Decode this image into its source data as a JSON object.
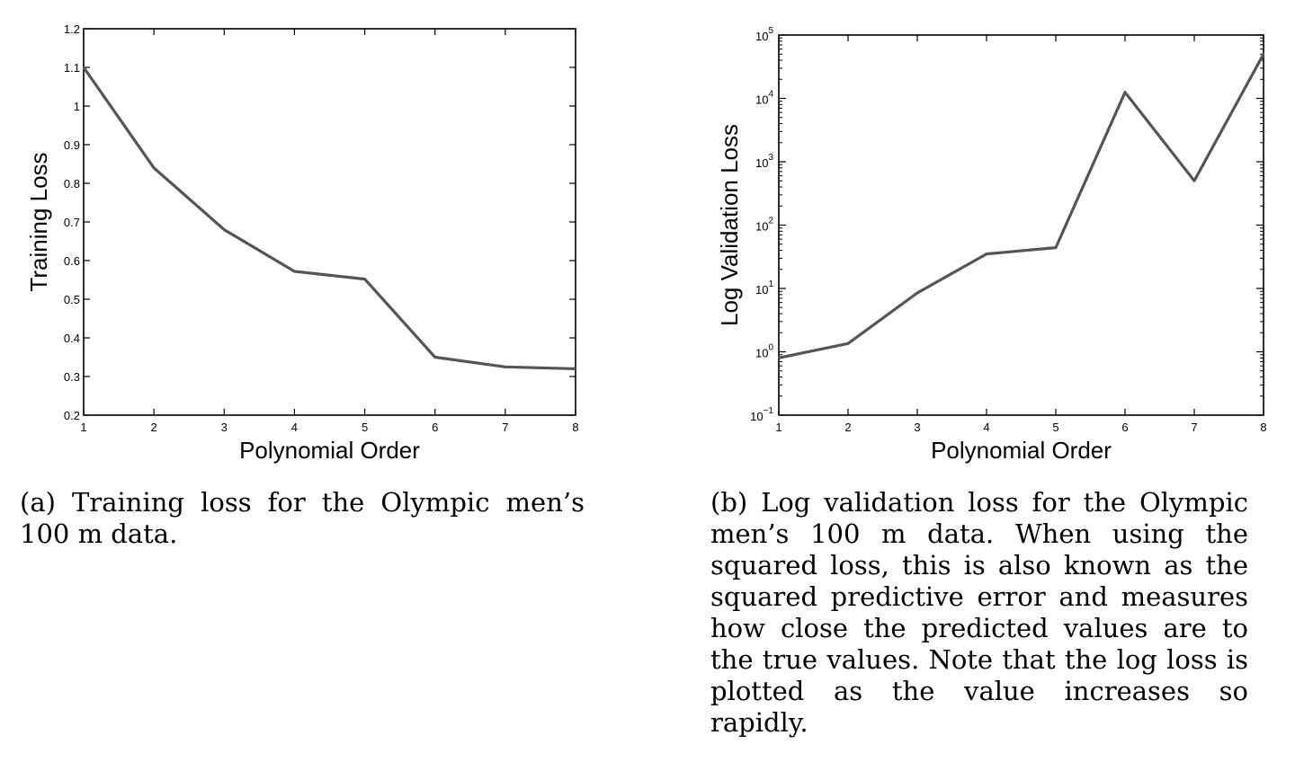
{
  "chart_data": [
    {
      "type": "line",
      "xlabel": "Polynomial Order",
      "ylabel": "Training Loss",
      "x": [
        1,
        2,
        3,
        4,
        5,
        6,
        7,
        8
      ],
      "series": [
        {
          "values": [
            1.1,
            0.84,
            0.68,
            0.572,
            0.552,
            0.35,
            0.325,
            0.32
          ]
        }
      ],
      "xlim": [
        1,
        8
      ],
      "ylim": [
        0.2,
        1.2
      ],
      "xticks": [
        "1",
        "2",
        "3",
        "4",
        "5",
        "6",
        "7",
        "8"
      ],
      "yticks": [
        "0.2",
        "0.3",
        "0.4",
        "0.5",
        "0.6",
        "0.7",
        "0.8",
        "0.9",
        "1",
        "1.1",
        "1.2"
      ],
      "yscale": "linear",
      "grid": false,
      "color": "#555555"
    },
    {
      "type": "line",
      "xlabel": "Polynomial Order",
      "ylabel": "Log Validation Loss",
      "x": [
        1,
        2,
        3,
        4,
        5,
        6,
        7,
        8
      ],
      "series": [
        {
          "values": [
            0.8,
            1.35,
            8.5,
            35,
            44,
            12500,
            500,
            50000
          ]
        }
      ],
      "xlim": [
        1,
        8
      ],
      "ylim": [
        0.1,
        100000
      ],
      "xticks": [
        "1",
        "2",
        "3",
        "4",
        "5",
        "6",
        "7",
        "8"
      ],
      "yticks": [
        {
          "base": "10",
          "exp": "−1"
        },
        {
          "base": "10",
          "exp": "0"
        },
        {
          "base": "10",
          "exp": "1"
        },
        {
          "base": "10",
          "exp": "2"
        },
        {
          "base": "10",
          "exp": "3"
        },
        {
          "base": "10",
          "exp": "4"
        },
        {
          "base": "10",
          "exp": "5"
        }
      ],
      "yscale": "log",
      "grid": false,
      "color": "#555555"
    }
  ],
  "captions": {
    "a": "(a) Training loss for the Olympic men’s 100 m data.",
    "b": "(b) Log validation loss for the Olympic men’s 100 m data. When using the squared loss, this is also known as the squared predictive error and measures how close the predicted values are to the true values. Note that the log loss is plotted as the value increases so rapidly."
  }
}
